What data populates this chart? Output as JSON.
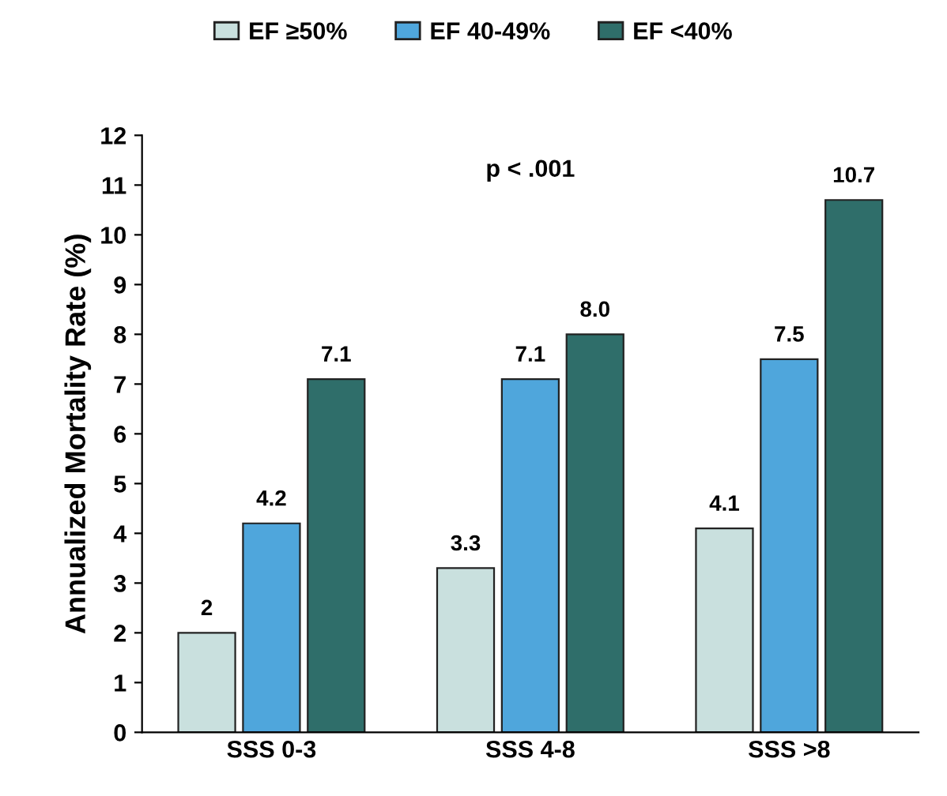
{
  "chart_data": {
    "type": "bar",
    "ylabel": "Annualized Mortality Rate (%)",
    "categories": [
      "SSS 0-3",
      "SSS 4-8",
      "SSS >8"
    ],
    "series": [
      {
        "name": "EF ≥50%",
        "color": "#c9e0de",
        "values": [
          2,
          3.3,
          4.1
        ],
        "value_labels": [
          "2",
          "3.3",
          "4.1"
        ]
      },
      {
        "name": "EF 40-49%",
        "color": "#4fa6dc",
        "values": [
          4.2,
          7.1,
          7.5
        ],
        "value_labels": [
          "4.2",
          "7.1",
          "7.5"
        ]
      },
      {
        "name": "EF <40%",
        "color": "#2f6e6a",
        "values": [
          7.1,
          8.0,
          10.7
        ],
        "value_labels": [
          "7.1",
          "8.0",
          "10.7"
        ]
      }
    ],
    "ylim": [
      0,
      12
    ],
    "yticks": [
      0,
      1,
      2,
      3,
      4,
      5,
      6,
      7,
      8,
      9,
      10,
      11,
      12
    ],
    "annotations": [
      "p < .001"
    ],
    "legend": "top",
    "grid": false
  }
}
